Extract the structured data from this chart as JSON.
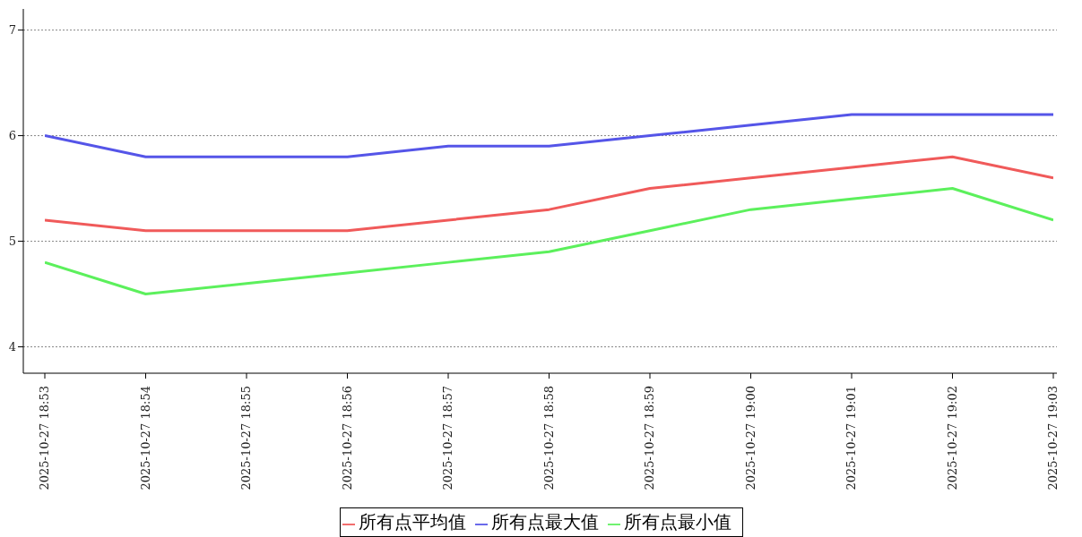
{
  "chart_data": {
    "type": "line",
    "categories": [
      "2025-10-27 18:53",
      "2025-10-27 18:54",
      "2025-10-27 18:55",
      "2025-10-27 18:56",
      "2025-10-27 18:57",
      "2025-10-27 18:58",
      "2025-10-27 18:59",
      "2025-10-27 19:00",
      "2025-10-27 19:01",
      "2025-10-27 19:02",
      "2025-10-27 19:03"
    ],
    "series": [
      {
        "name": "所有点平均值",
        "color": "#f05a5a",
        "values": [
          5.2,
          5.1,
          5.1,
          5.1,
          5.2,
          5.3,
          5.5,
          5.6,
          5.7,
          5.8,
          5.6
        ]
      },
      {
        "name": "所有点最大值",
        "color": "#5555e8",
        "values": [
          6.0,
          5.8,
          5.8,
          5.8,
          5.9,
          5.9,
          6.0,
          6.1,
          6.2,
          6.2,
          6.2
        ]
      },
      {
        "name": "所有点最小值",
        "color": "#5cf05c",
        "values": [
          4.8,
          4.5,
          4.6,
          4.7,
          4.8,
          4.9,
          5.1,
          5.3,
          5.4,
          5.5,
          5.2
        ]
      }
    ],
    "ylim": [
      3.75,
      7.2
    ],
    "yticks": [
      4,
      5,
      6,
      7
    ],
    "grid": "y",
    "legend": "bottom",
    "marker": "none",
    "line_style": "solid"
  }
}
